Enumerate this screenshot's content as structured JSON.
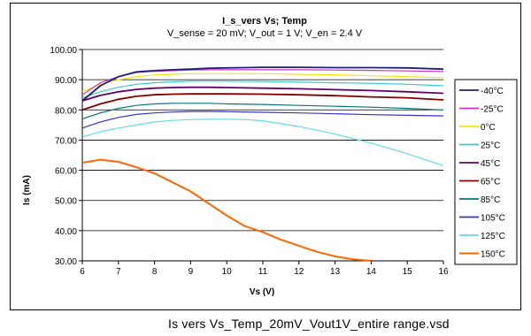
{
  "footer_caption": "Is vers Vs_Temp_20mV_Vout1V_entire range.vsd",
  "chart_data": {
    "type": "line",
    "title": "I_s_vers Vs; Temp",
    "subtitle": "V_sense = 20 mV; V_out = 1 V; V_en = 2.4 V",
    "xlabel": "Vs (V)",
    "ylabel": "Is (mA)",
    "xlim": [
      6,
      16
    ],
    "ylim": [
      30,
      100
    ],
    "x_ticks": [
      "6",
      "7",
      "8",
      "9",
      "10",
      "11",
      "12",
      "13",
      "14",
      "15",
      "16"
    ],
    "y_ticks": [
      "30.00",
      "40.00",
      "50.00",
      "60.00",
      "70.00",
      "80.00",
      "90.00",
      "100.00"
    ],
    "grid": "horizontal",
    "legend_position": "right",
    "series": [
      {
        "name": "-40°C",
        "color": "#1f1f7a",
        "x": [
          6,
          6.5,
          7,
          7.5,
          8,
          8.5,
          9,
          9.5,
          10,
          10.5,
          11,
          12,
          13,
          14,
          15,
          16
        ],
        "y": [
          83.0,
          88.0,
          91.0,
          92.6,
          93.0,
          93.3,
          93.5,
          93.8,
          93.9,
          94.0,
          94.1,
          94.1,
          94.0,
          94.0,
          93.9,
          93.5
        ]
      },
      {
        "name": "-25°C",
        "color": "#cc33cc",
        "x": [
          6,
          6.5,
          7,
          7.5,
          8,
          8.5,
          9,
          9.5,
          10,
          10.5,
          11,
          12,
          13,
          14,
          15,
          16
        ],
        "y": [
          85.0,
          89.0,
          91.0,
          92.4,
          92.8,
          93.0,
          93.2,
          93.3,
          93.3,
          93.3,
          93.3,
          93.3,
          93.2,
          93.1,
          92.9,
          92.7
        ]
      },
      {
        "name": "0°C",
        "color": "#f2e600",
        "x": [
          6,
          6.5,
          7,
          7.5,
          8,
          8.5,
          9,
          9.5,
          10,
          11,
          12,
          13,
          14,
          15,
          16
        ],
        "y": [
          86.0,
          88.5,
          90.0,
          91.0,
          91.6,
          91.8,
          92.0,
          92.0,
          92.0,
          92.0,
          91.8,
          91.6,
          91.3,
          91.0,
          90.7
        ]
      },
      {
        "name": "25°C",
        "color": "#33cccc",
        "x": [
          6,
          6.5,
          7,
          7.5,
          8,
          8.5,
          9,
          9.5,
          10,
          11,
          12,
          13,
          14,
          15,
          16
        ],
        "y": [
          84.0,
          86.0,
          87.5,
          88.5,
          89.0,
          89.3,
          89.5,
          89.5,
          89.5,
          89.4,
          89.2,
          89.0,
          88.8,
          88.5,
          88.0
        ]
      },
      {
        "name": "45°C",
        "color": "#660066",
        "x": [
          6,
          6.5,
          7,
          7.5,
          8,
          8.5,
          9,
          9.5,
          10,
          11,
          12,
          13,
          14,
          15,
          16
        ],
        "y": [
          83.0,
          84.8,
          86.0,
          86.8,
          87.2,
          87.4,
          87.5,
          87.5,
          87.4,
          87.2,
          87.0,
          86.7,
          86.4,
          86.0,
          85.5
        ]
      },
      {
        "name": "65°C",
        "color": "#800000",
        "x": [
          6,
          6.5,
          7,
          7.5,
          8,
          8.5,
          9,
          9.5,
          10,
          11,
          12,
          13,
          14,
          15,
          16
        ],
        "y": [
          80.0,
          82.0,
          83.5,
          84.5,
          85.0,
          85.2,
          85.3,
          85.3,
          85.3,
          85.2,
          85.0,
          84.7,
          84.3,
          84.0,
          83.3
        ]
      },
      {
        "name": "85°C",
        "color": "#007777",
        "x": [
          6,
          6.5,
          7,
          7.5,
          8,
          8.5,
          9,
          9.5,
          10,
          11,
          12,
          13,
          14,
          15,
          16
        ],
        "y": [
          77.0,
          79.0,
          80.5,
          81.5,
          82.0,
          82.2,
          82.2,
          82.2,
          82.0,
          81.8,
          81.5,
          81.2,
          80.9,
          80.5,
          80.0
        ]
      },
      {
        "name": "105°C",
        "color": "#3333cc",
        "x": [
          6,
          6.5,
          7,
          7.5,
          8,
          8.5,
          9,
          9.5,
          10,
          11,
          12,
          13,
          14,
          15,
          16
        ],
        "y": [
          74.0,
          76.0,
          77.5,
          78.5,
          79.0,
          79.3,
          79.5,
          79.5,
          79.4,
          79.2,
          79.0,
          78.7,
          78.4,
          78.2,
          78.0
        ]
      },
      {
        "name": "125°C",
        "color": "#66d9e8",
        "x": [
          6,
          6.5,
          7,
          7.5,
          8,
          8.5,
          9,
          9.5,
          10,
          10.5,
          11,
          12,
          13,
          14,
          15,
          16
        ],
        "y": [
          71.0,
          72.8,
          74.0,
          75.0,
          76.0,
          76.5,
          76.8,
          76.9,
          76.9,
          76.8,
          76.4,
          74.5,
          72.0,
          69.0,
          65.5,
          61.5
        ]
      },
      {
        "name": "150°C",
        "color": "#ff6600",
        "x": [
          6,
          6.5,
          7,
          7.5,
          8,
          8.5,
          9,
          9.5,
          10,
          10.5,
          11,
          11.5,
          12,
          12.5,
          13,
          13.5,
          14
        ],
        "y": [
          62.5,
          63.5,
          62.8,
          61.0,
          59.0,
          56.0,
          53.0,
          49.0,
          45.0,
          41.5,
          39.5,
          37.0,
          35.0,
          33.0,
          31.5,
          30.5,
          30.0
        ]
      }
    ]
  }
}
